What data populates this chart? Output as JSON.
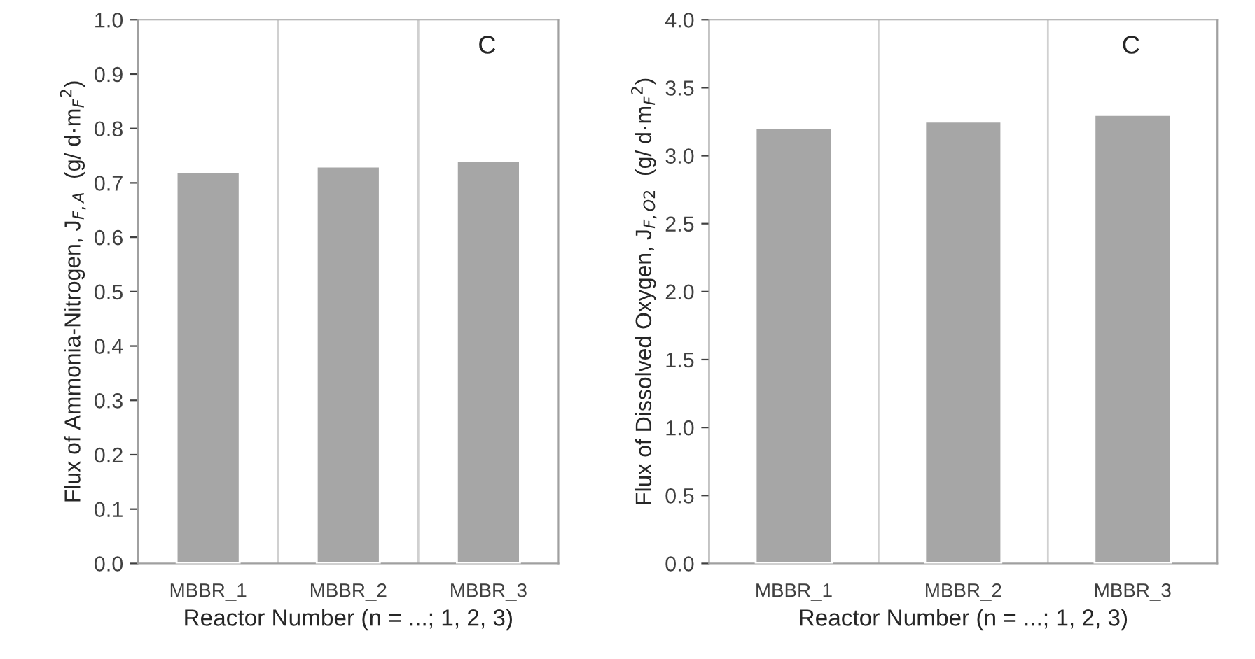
{
  "chart_data": [
    {
      "type": "bar",
      "categories": [
        "MBBR_1",
        "MBBR_2",
        "MBBR_3"
      ],
      "values": [
        0.72,
        0.73,
        0.74
      ],
      "color": "#a6a6a6",
      "ylim": [
        0,
        1.0
      ],
      "yticks": [
        {
          "value": 0,
          "label": "0.0"
        },
        0.1,
        0.2,
        0.3,
        0.4,
        0.5,
        0.6,
        0.7,
        0.8,
        0.9,
        {
          "value": 1.0,
          "label": "1.0"
        }
      ],
      "xlabel": "Reactor Number (n = ...; 1, 2, 3)",
      "ylabel": "Flux of Ammonia-Nitrogen, J$_{F,A}$  (g/ d·m$_{F}$$^{2}$)",
      "annotations": [
        "C"
      ],
      "grid": "x"
    },
    {
      "type": "bar",
      "categories": [
        "MBBR_1",
        "MBBR_2",
        "MBBR_3"
      ],
      "values": [
        3.2,
        3.25,
        3.3
      ],
      "color": "#a6a6a6",
      "ylim": [
        0,
        4.0
      ],
      "yticks": [
        {
          "value": 0,
          "label": "0.0"
        },
        0.5,
        {
          "value": 1,
          "label": "1.0"
        },
        1.5,
        {
          "value": 2,
          "label": "2.0"
        },
        2.5,
        {
          "value": 3,
          "label": "3.0"
        },
        3.5,
        {
          "value": 4,
          "label": "4.0"
        }
      ],
      "xlabel": "Reactor Number (n = ...; 1, 2, 3)",
      "ylabel": "Flux of Dissolved Oxygen, J$_{F,O2}$  (g/ d·m$_{F}$$^{2}$)",
      "annotations": [
        "C"
      ],
      "grid": "x"
    }
  ]
}
